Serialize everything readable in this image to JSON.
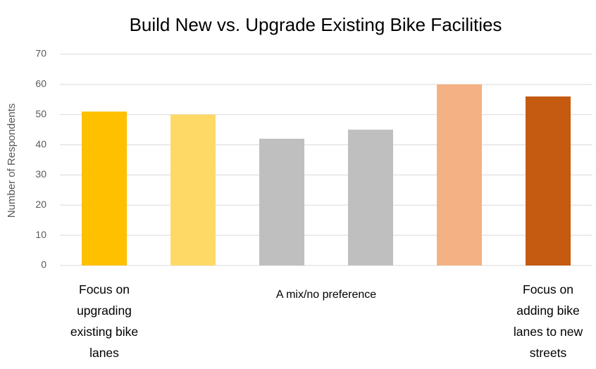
{
  "chart_data": {
    "type": "bar",
    "title": "Build New vs. Upgrade Existing Bike Facilities",
    "y_label": "Number of  Respondents",
    "categories": [
      "Focus on upgrading existing bike lanes",
      null,
      null,
      null,
      null,
      "Focus on adding bike lanes to new streets"
    ],
    "annotation": "A mix/no preference",
    "values": [
      51,
      50,
      42,
      45,
      60,
      56
    ],
    "colors": [
      "#ffc000",
      "#ffd966",
      "#bfbfbf",
      "#bfbfbf",
      "#f4b183",
      "#c55a11"
    ],
    "ylim": [
      0,
      70
    ],
    "yticks": [
      0,
      10,
      20,
      30,
      40,
      50,
      60,
      70
    ],
    "grid": true
  }
}
